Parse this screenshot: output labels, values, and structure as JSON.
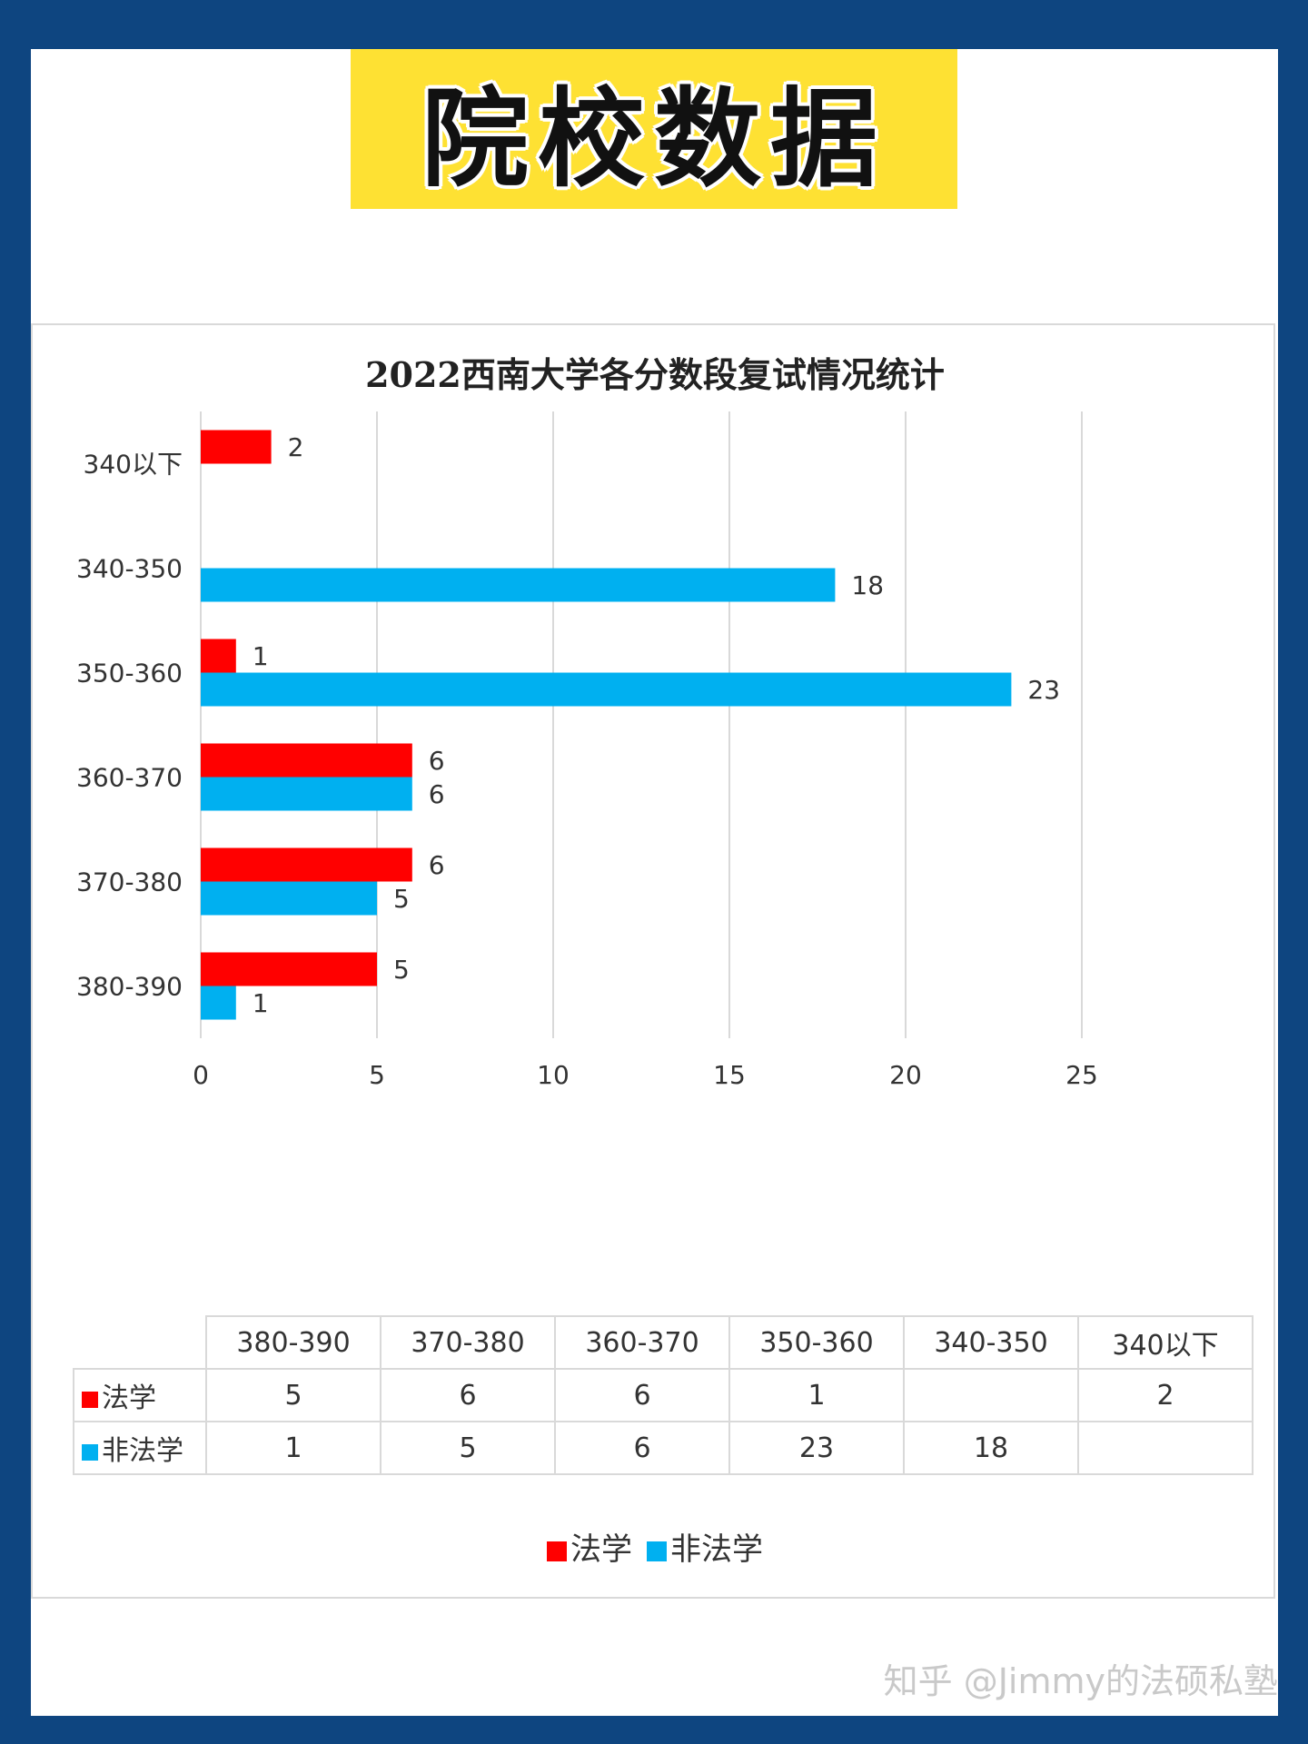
{
  "banner": {
    "text": "院校数据"
  },
  "colors": {
    "law": "#ff0000",
    "non_law": "#00b0f0",
    "background": "#0e4580",
    "banner": "#fee133"
  },
  "chart_data": {
    "type": "bar",
    "orientation": "horizontal",
    "title": "2022西南大学各分数段复试情况统计",
    "categories": [
      "380-390",
      "370-380",
      "360-370",
      "350-360",
      "340-350",
      "340以下"
    ],
    "series": [
      {
        "name": "法学",
        "values": [
          5,
          6,
          6,
          1,
          null,
          2
        ]
      },
      {
        "name": "非法学",
        "values": [
          1,
          5,
          6,
          23,
          18,
          null
        ]
      }
    ],
    "xlim": [
      0,
      25
    ],
    "xticks": [
      0,
      5,
      10,
      15,
      20,
      25
    ],
    "grid": true,
    "legend_position": "bottom",
    "data_table": true
  },
  "watermark": "知乎 @Jimmy的法硕私塾"
}
